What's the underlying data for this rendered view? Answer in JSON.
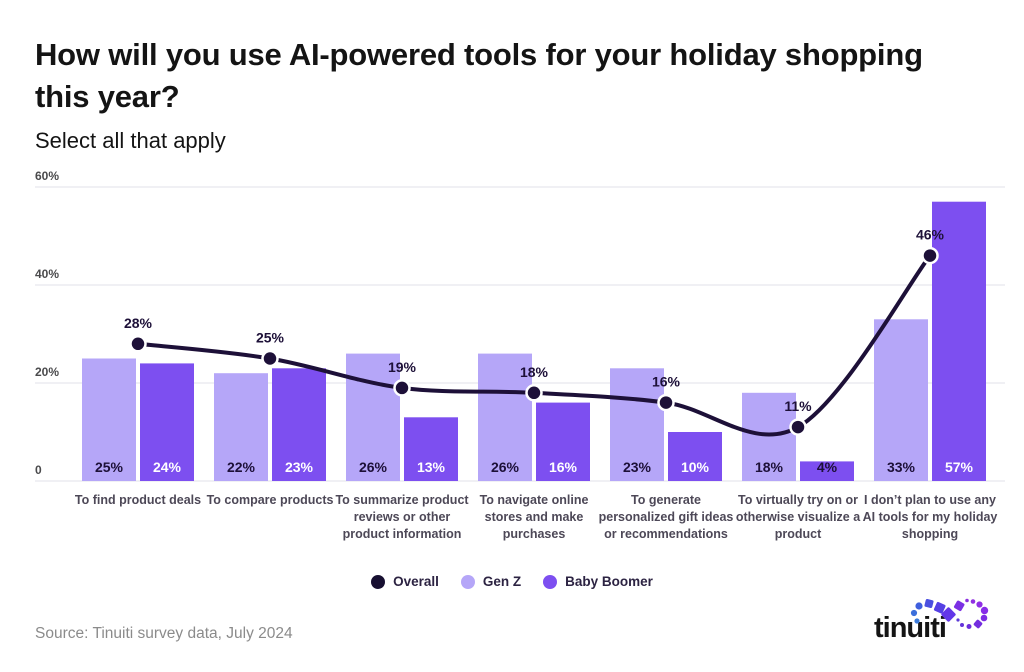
{
  "header": {
    "title": "How will you use AI-powered tools for your holiday shopping this year?",
    "subtitle": "Select all that apply"
  },
  "chart_data": {
    "type": "bar",
    "subtype": "grouped-bars-with-line-overlay",
    "categories": [
      "To find product deals",
      "To compare products",
      "To summarize product reviews or other product information",
      "To navigate online stores and make purchases",
      "To generate personalized gift ideas or recommendations",
      "To virtually try on or otherwise visualize a product",
      "I don’t plan to use any AI tools for my holiday shopping"
    ],
    "series": [
      {
        "name": "Overall",
        "type": "line",
        "color": "#1d1038",
        "values": [
          28,
          25,
          19,
          18,
          16,
          11,
          46
        ]
      },
      {
        "name": "Gen Z",
        "type": "bar",
        "color": "#b5a6f8",
        "values": [
          25,
          22,
          26,
          26,
          23,
          18,
          33
        ]
      },
      {
        "name": "Baby Boomer",
        "type": "bar",
        "color": "#7d4ff0",
        "values": [
          24,
          23,
          13,
          16,
          10,
          4,
          57
        ]
      }
    ],
    "value_suffix": "%",
    "ylim": [
      0,
      60
    ],
    "yticks": [
      {
        "value": 0,
        "label": "0"
      },
      {
        "value": 20,
        "label": "20%"
      },
      {
        "value": 40,
        "label": "40%"
      },
      {
        "value": 60,
        "label": "60%"
      }
    ],
    "grid": true,
    "legend_position": "bottom",
    "colors": {
      "grid": "#ebebf0",
      "tick_label": "#4a4a4c",
      "bar_label_dark": "#1d1038",
      "bar_label_light": "#ffffff",
      "point_label": "#1d1038",
      "marker_ring": "#ffffff"
    }
  },
  "legend": {
    "items": [
      {
        "label": "Overall",
        "color": "#170f31"
      },
      {
        "label": "Gen Z",
        "color": "#b5a6f8"
      },
      {
        "label": "Baby Boomer",
        "color": "#7d4ff0"
      }
    ]
  },
  "footer": {
    "source": "Source: Tinuiti survey data, July 2024",
    "logo_text": "tinuiti"
  }
}
